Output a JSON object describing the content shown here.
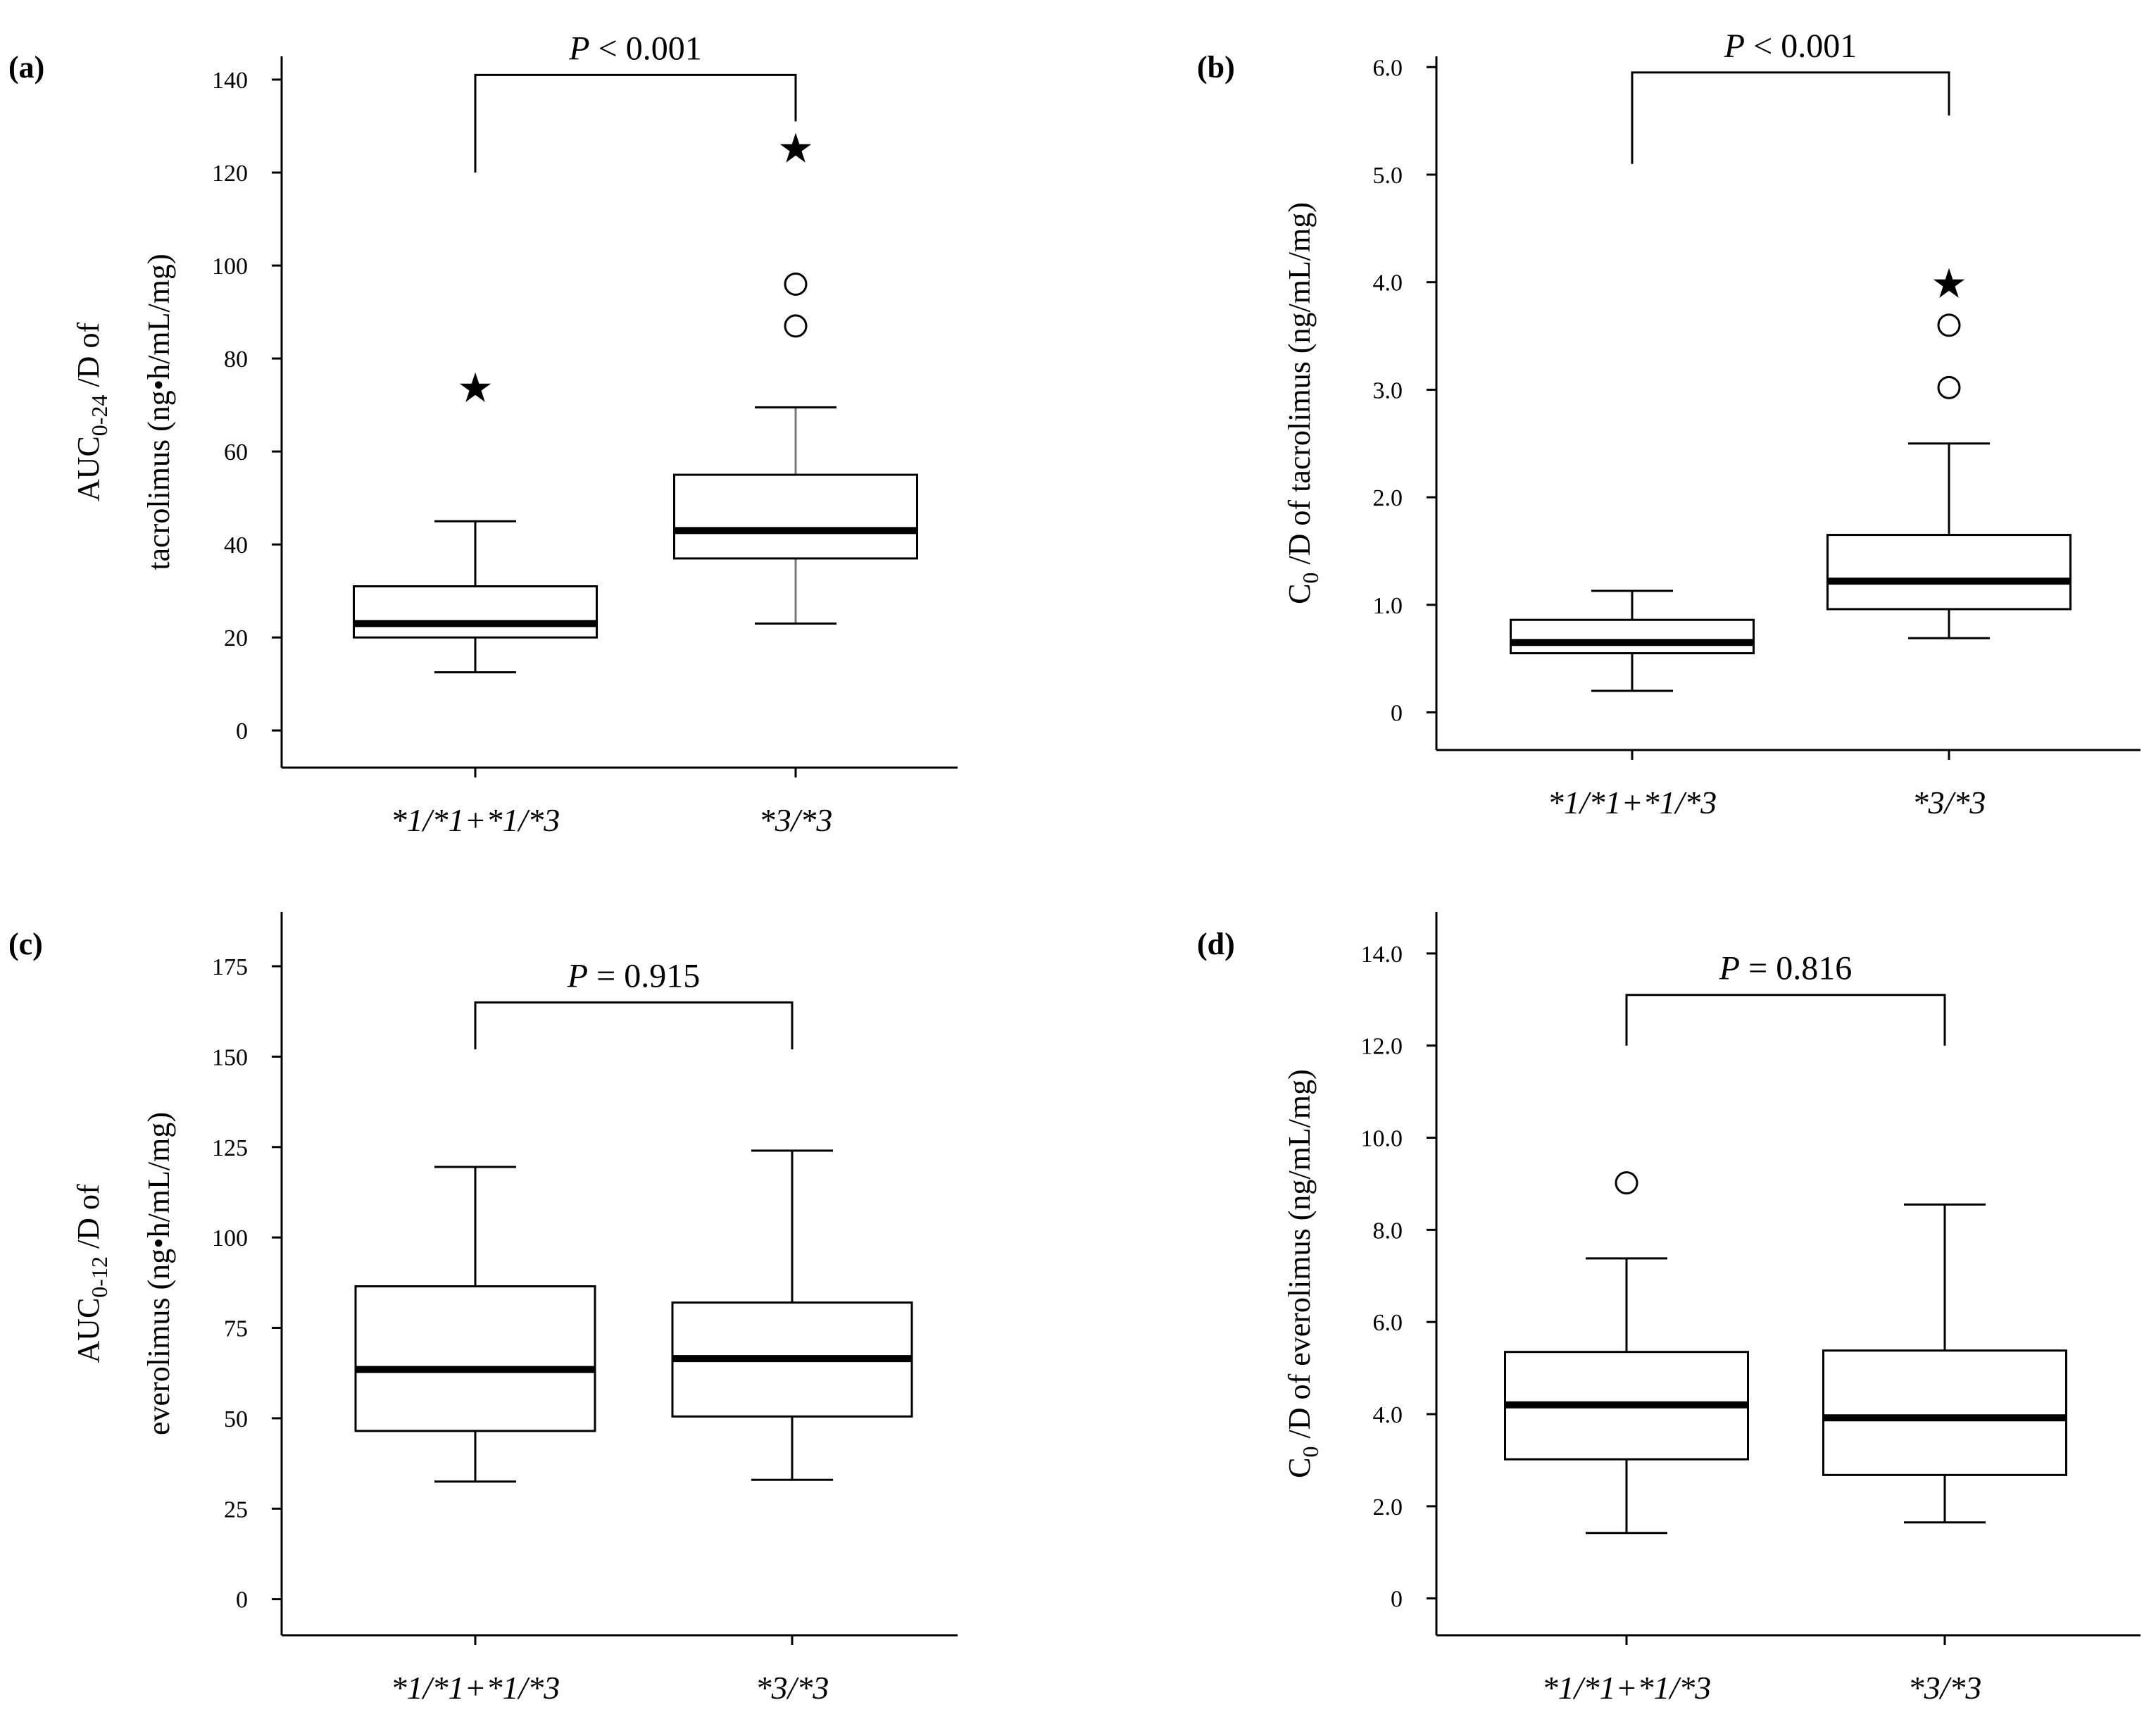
{
  "chart_data": [
    {
      "type": "box",
      "panel_label": "(a)",
      "ylabel_lines": [
        [
          "AUC",
          "0-24",
          " /D of"
        ],
        [
          "tacrolimus (ng•h/mL/mg)"
        ]
      ],
      "yticks": [
        0,
        20,
        40,
        60,
        80,
        100,
        120,
        140
      ],
      "tick_labels": [
        "0",
        "20",
        "40",
        "60",
        "80",
        "100",
        "120",
        "140"
      ],
      "ylim": [
        -8,
        145
      ],
      "categories": [
        "*1/*1+*1/*3",
        "*3/*3"
      ],
      "boxes": [
        {
          "group": "*1/*1+*1/*3",
          "whisker_low": 12.5,
          "q1": 20,
          "median": 23,
          "q3": 31,
          "whisker_high": 45,
          "outliers": [],
          "extremes": [
            73.5
          ]
        },
        {
          "group": "*3/*3",
          "whisker_low": 23,
          "q1": 37,
          "median": 43,
          "q3": 55,
          "whisker_high": 69.5,
          "outliers": [
            87,
            96
          ],
          "extremes": [
            125
          ]
        }
      ],
      "comparison": {
        "prefix": "P",
        "text": " < 0.001",
        "bracket_y": 141,
        "left_drop": 120,
        "right_drop": 131
      }
    },
    {
      "type": "box",
      "panel_label": "(b)",
      "ylabel_lines": [
        [
          "C",
          "0",
          " /D of tacrolimus (ng/mL/mg)"
        ]
      ],
      "yticks": [
        0,
        1,
        2,
        3,
        4,
        5,
        6
      ],
      "tick_labels": [
        "0",
        "1.0",
        "2.0",
        "3.0",
        "4.0",
        "5.0",
        "6.0"
      ],
      "ylim": [
        -0.35,
        6.1
      ],
      "categories": [
        "*1/*1+*1/*3",
        "*3/*3"
      ],
      "boxes": [
        {
          "group": "*1/*1+*1/*3",
          "whisker_low": 0.2,
          "q1": 0.55,
          "median": 0.65,
          "q3": 0.86,
          "whisker_high": 1.13,
          "outliers": [],
          "extremes": []
        },
        {
          "group": "*3/*3",
          "whisker_low": 0.69,
          "q1": 0.96,
          "median": 1.22,
          "q3": 1.65,
          "whisker_high": 2.5,
          "outliers": [
            3.02,
            3.6
          ],
          "extremes": [
            3.98
          ]
        }
      ],
      "comparison": {
        "prefix": "P",
        "text": " < 0.001",
        "bracket_y": 5.95,
        "left_drop": 5.1,
        "right_drop": 5.55
      }
    },
    {
      "type": "box",
      "panel_label": "(c)",
      "ylabel_lines": [
        [
          "AUC",
          "0-12",
          " /D of"
        ],
        [
          "everolimus (ng•h/mL/mg)"
        ]
      ],
      "yticks": [
        0,
        25,
        50,
        75,
        100,
        125,
        150,
        175
      ],
      "tick_labels": [
        "0",
        "25",
        "50",
        "75",
        "100",
        "125",
        "150",
        "175"
      ],
      "ylim": [
        -10,
        190
      ],
      "categories": [
        "*1/*1+*1/*3",
        "*3/*3"
      ],
      "boxes": [
        {
          "group": "*1/*1+*1/*3",
          "whisker_low": 32.5,
          "q1": 46.5,
          "median": 63.5,
          "q3": 86.5,
          "whisker_high": 119.5,
          "outliers": [],
          "extremes": []
        },
        {
          "group": "*3/*3",
          "whisker_low": 33,
          "q1": 50.5,
          "median": 66.5,
          "q3": 82,
          "whisker_high": 124,
          "outliers": [],
          "extremes": []
        }
      ],
      "comparison": {
        "prefix": "P",
        "text": " = 0.915",
        "bracket_y": 165,
        "left_drop": 152,
        "right_drop": 152
      }
    },
    {
      "type": "box",
      "panel_label": "(d)",
      "ylabel_lines": [
        [
          "C",
          "0",
          " /D of everolimus (ng/mL/mg)"
        ]
      ],
      "yticks": [
        0,
        2,
        4,
        6,
        8,
        10,
        12,
        14
      ],
      "tick_labels": [
        "0",
        "2.0",
        "4.0",
        "6.0",
        "8.0",
        "10.0",
        "12.0",
        "14.0"
      ],
      "ylim": [
        -0.8,
        14.9
      ],
      "categories": [
        "*1/*1+*1/*3",
        "*3/*3"
      ],
      "boxes": [
        {
          "group": "*1/*1+*1/*3",
          "whisker_low": 1.42,
          "q1": 3.02,
          "median": 4.2,
          "q3": 5.35,
          "whisker_high": 7.38,
          "outliers": [
            9.02
          ],
          "extremes": []
        },
        {
          "group": "*3/*3",
          "whisker_low": 1.65,
          "q1": 2.68,
          "median": 3.92,
          "q3": 5.38,
          "whisker_high": 8.55,
          "outliers": [],
          "extremes": []
        }
      ],
      "comparison": {
        "prefix": "P",
        "text": " = 0.816",
        "bracket_y": 13.1,
        "left_drop": 12.0,
        "right_drop": 12.0
      }
    }
  ]
}
